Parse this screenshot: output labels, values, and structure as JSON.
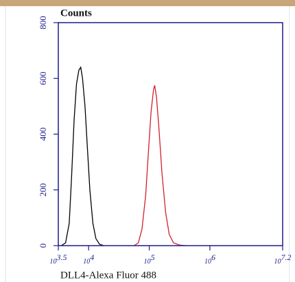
{
  "chart_data": {
    "type": "line",
    "ylabel": "Counts",
    "xlabel": "DLL4-Alexa Fluor 488",
    "xscale": "log",
    "xlim": [
      3162.28,
      15848932
    ],
    "xticks": [
      {
        "value": 3162.28,
        "label": "10",
        "exponent": "3.5"
      },
      {
        "value": 10000,
        "label": "10",
        "exponent": "4"
      },
      {
        "value": 100000,
        "label": "10",
        "exponent": "5"
      },
      {
        "value": 1000000,
        "label": "10",
        "exponent": "6"
      },
      {
        "value": 15848932,
        "label": "10",
        "exponent": "7.2"
      }
    ],
    "ylim": [
      0,
      800
    ],
    "yticks": [
      0,
      200,
      400,
      600,
      800
    ],
    "series": [
      {
        "color": "#000000",
        "x": [
          3548,
          4169,
          4786,
          5248,
          5754,
          6310,
          6918,
          7413,
          7943,
          8710,
          9550,
          10471,
          11749,
          13183,
          15136,
          17783
        ],
        "values": [
          0,
          10,
          80,
          250,
          450,
          580,
          630,
          640,
          600,
          500,
          350,
          200,
          80,
          25,
          5,
          0
        ]
      },
      {
        "color": "#d0202a",
        "x": [
          56234,
          66069,
          75858,
          87096,
          97724,
          107152,
          117490,
          123027,
          131826,
          144544,
          162181,
          186209,
          213796,
          251189,
          316228,
          398107
        ],
        "values": [
          0,
          10,
          60,
          180,
          350,
          480,
          560,
          575,
          530,
          420,
          260,
          120,
          40,
          10,
          2,
          0
        ]
      }
    ]
  }
}
